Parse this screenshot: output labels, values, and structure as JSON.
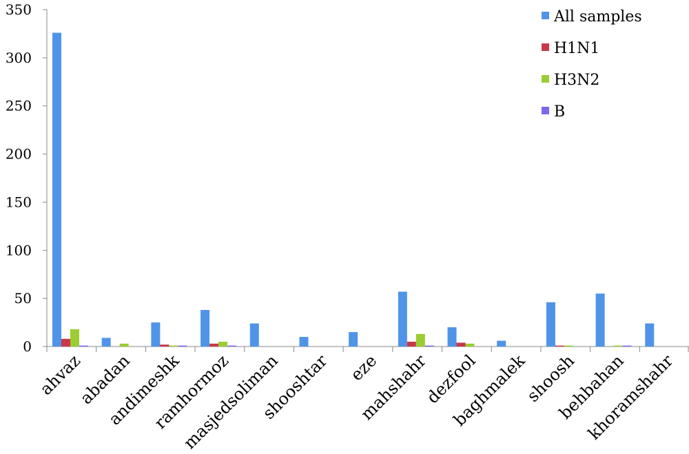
{
  "chart_data": {
    "type": "bar",
    "title": "",
    "xlabel": "",
    "ylabel": "",
    "ylim": [
      0,
      350
    ],
    "yticks": [
      0,
      50,
      100,
      150,
      200,
      250,
      300,
      350
    ],
    "grid": false,
    "legend_position": "top-right",
    "categories": [
      "ahvaz",
      "abadan",
      "andimeshk",
      "ramhormoz",
      "masjedsoliman",
      "shooshtar",
      "eze",
      "mahshahr",
      "dezfool",
      "baghmalek",
      "shoosh",
      "behbahan",
      "khoramshahr"
    ],
    "series": [
      {
        "name": "All samples",
        "color": "#4F94E8",
        "values": [
          326,
          9,
          25,
          38,
          24,
          10,
          15,
          57,
          20,
          6,
          46,
          55,
          24
        ]
      },
      {
        "name": "H1N1",
        "color": "#C8384A",
        "values": [
          8,
          0,
          2,
          3,
          0,
          0,
          0,
          5,
          4,
          0,
          1,
          0,
          0
        ]
      },
      {
        "name": "H3N2",
        "color": "#9ACD32",
        "values": [
          18,
          3,
          1,
          5,
          0,
          0,
          0,
          13,
          3,
          0,
          1,
          1,
          0
        ]
      },
      {
        "name": "B",
        "color": "#7B68EE",
        "values": [
          1,
          0,
          1,
          1,
          0,
          0,
          0,
          1,
          0,
          0,
          0,
          1,
          0
        ]
      }
    ]
  }
}
